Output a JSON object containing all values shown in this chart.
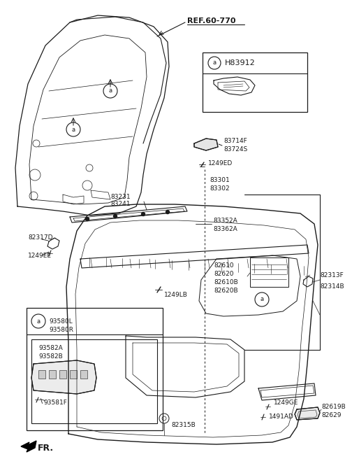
{
  "bg_color": "#ffffff",
  "line_color": "#1a1a1a",
  "text_color": "#1a1a1a",
  "labels": {
    "ref": "REF.60-770",
    "h83912": "H83912",
    "p83714f": "83714F",
    "p83724s": "83724S",
    "p1249ed": "1249ED",
    "p83301": "83301",
    "p83302": "83302",
    "p83352a": "83352A",
    "p83362a": "83362A",
    "p82317d": "82317D",
    "p1249ee": "1249EE",
    "p83231": "83231",
    "p83241": "83241",
    "p82610": "82610",
    "p82620": "82620",
    "p82610b": "82610B",
    "p82620b": "82620B",
    "p1249lb": "1249LB",
    "p82313f": "82313F",
    "p82314b": "82314B",
    "p93580l": "93580L",
    "p93580r": "93580R",
    "p93582a": "93582A",
    "p93582b": "93582B",
    "p93581f": "93581F",
    "p82315b": "82315B",
    "p1249ge": "1249GE",
    "p1491ad": "1491AD",
    "p82619b": "82619B",
    "p82629": "82629",
    "fr": "FR."
  }
}
